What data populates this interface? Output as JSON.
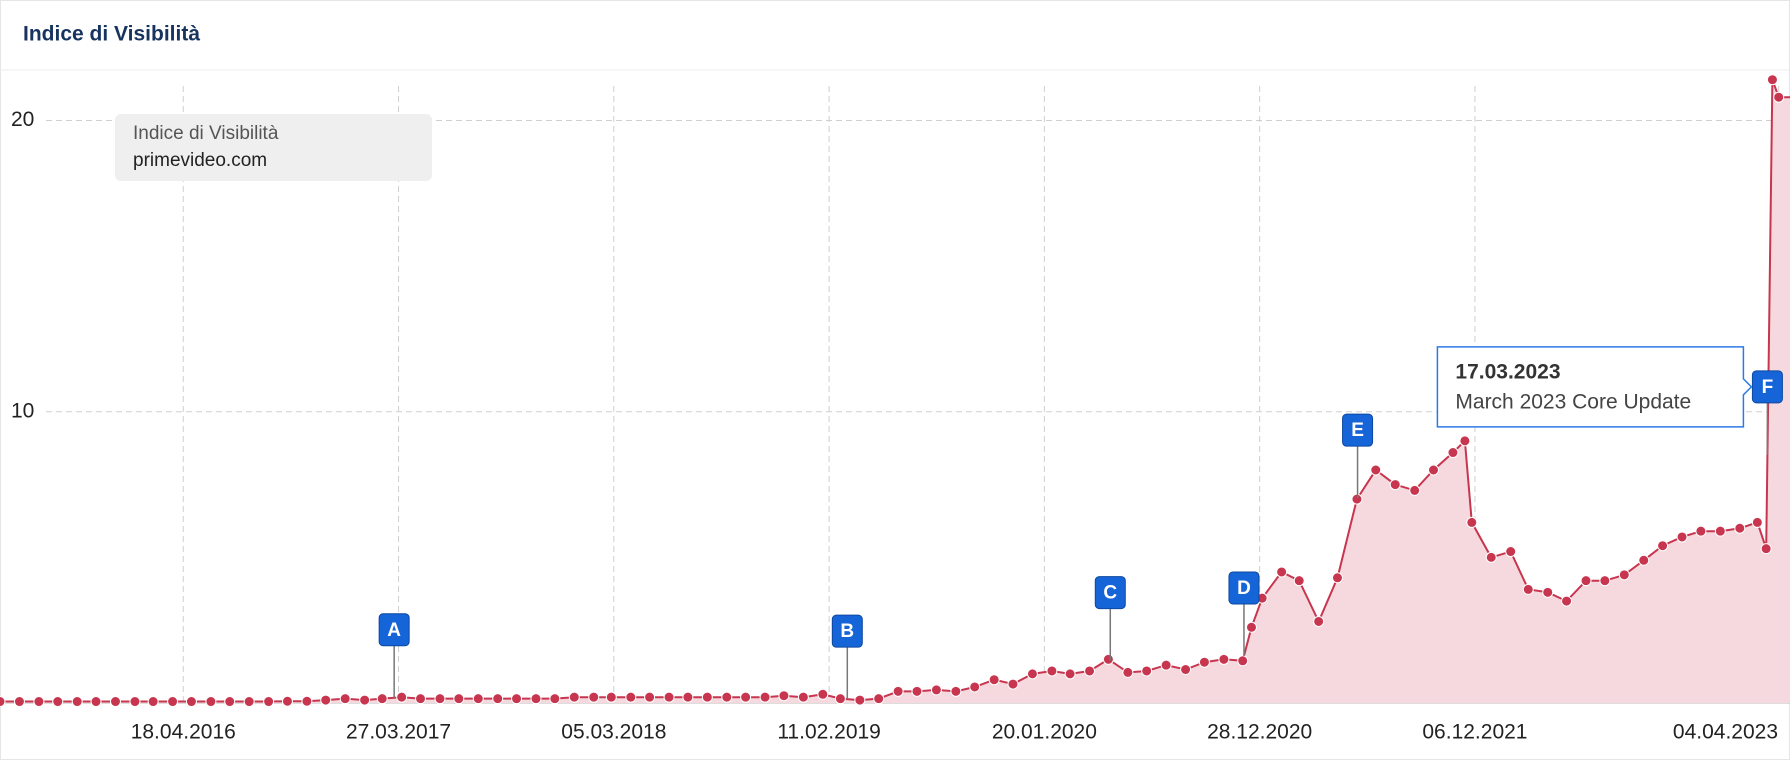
{
  "header": {
    "title": "Indice di Visibilità"
  },
  "chart_data": {
    "type": "area",
    "legend": {
      "title": "Indice di Visibilità",
      "text": "primevideo.com"
    },
    "x": [
      "2015-07-01",
      "2015-08-01",
      "2015-09-01",
      "2015-10-01",
      "2015-11-01",
      "2015-12-01",
      "2016-01-01",
      "2016-02-01",
      "2016-03-01",
      "2016-04-01",
      "2016-05-01",
      "2016-06-01",
      "2016-07-01",
      "2016-08-01",
      "2016-09-01",
      "2016-10-01",
      "2016-11-01",
      "2016-12-01",
      "2017-01-01",
      "2017-02-01",
      "2017-03-01",
      "2017-04-01",
      "2017-05-01",
      "2017-06-01",
      "2017-07-01",
      "2017-08-01",
      "2017-09-01",
      "2017-10-01",
      "2017-11-01",
      "2017-12-01",
      "2018-01-01",
      "2018-02-01",
      "2018-03-01",
      "2018-04-01",
      "2018-05-01",
      "2018-06-01",
      "2018-07-01",
      "2018-08-01",
      "2018-09-01",
      "2018-10-01",
      "2018-11-01",
      "2018-12-01",
      "2019-01-01",
      "2019-02-01",
      "2019-03-01",
      "2019-04-01",
      "2019-05-01",
      "2019-06-01",
      "2019-07-01",
      "2019-08-01",
      "2019-09-01",
      "2019-10-01",
      "2019-11-01",
      "2019-12-01",
      "2020-01-01",
      "2020-02-01",
      "2020-03-01",
      "2020-04-01",
      "2020-05-01",
      "2020-06-01",
      "2020-07-01",
      "2020-08-01",
      "2020-09-01",
      "2020-10-01",
      "2020-11-01",
      "2020-12-01",
      "2020-12-15",
      "2021-01-01",
      "2021-02-01",
      "2021-03-01",
      "2021-04-01",
      "2021-05-01",
      "2021-06-01",
      "2021-07-01",
      "2021-08-01",
      "2021-09-01",
      "2021-10-01",
      "2021-11-01",
      "2021-11-20",
      "2021-12-01",
      "2022-01-01",
      "2022-02-01",
      "2022-03-01",
      "2022-04-01",
      "2022-05-01",
      "2022-06-01",
      "2022-07-01",
      "2022-08-01",
      "2022-09-01",
      "2022-10-01",
      "2022-11-01",
      "2022-12-01",
      "2023-01-01",
      "2023-02-01",
      "2023-03-01",
      "2023-03-15",
      "2023-03-25",
      "2023-04-04"
    ],
    "series": [
      {
        "name": "primevideo.com",
        "color": "#c7354f",
        "fill": "#f6d9de",
        "values": [
          0.05,
          0.05,
          0.05,
          0.05,
          0.05,
          0.05,
          0.05,
          0.05,
          0.05,
          0.05,
          0.05,
          0.05,
          0.05,
          0.05,
          0.05,
          0.06,
          0.06,
          0.1,
          0.15,
          0.1,
          0.15,
          0.2,
          0.15,
          0.15,
          0.15,
          0.15,
          0.15,
          0.15,
          0.15,
          0.15,
          0.2,
          0.2,
          0.2,
          0.2,
          0.2,
          0.2,
          0.2,
          0.2,
          0.2,
          0.2,
          0.2,
          0.25,
          0.2,
          0.3,
          0.15,
          0.1,
          0.15,
          0.4,
          0.4,
          0.45,
          0.4,
          0.55,
          0.8,
          0.65,
          1.0,
          1.1,
          1.0,
          1.1,
          1.5,
          1.05,
          1.1,
          1.3,
          1.15,
          1.4,
          1.5,
          1.45,
          2.6,
          3.6,
          4.5,
          4.2,
          2.8,
          4.3,
          7.0,
          8.0,
          7.5,
          7.3,
          8.0,
          8.6,
          9.0,
          6.2,
          5.0,
          5.2,
          3.9,
          3.8,
          3.5,
          4.2,
          4.2,
          4.4,
          4.9,
          5.4,
          5.7,
          5.9,
          5.9,
          6.0,
          6.2,
          5.3,
          21.4,
          20.8
        ]
      }
    ],
    "xlim": [
      "2015-07-01",
      "2023-04-22"
    ],
    "xticks": [
      {
        "value": "2016-04-18",
        "label": "18.04.2016"
      },
      {
        "value": "2017-03-27",
        "label": "27.03.2017"
      },
      {
        "value": "2018-03-05",
        "label": "05.03.2018"
      },
      {
        "value": "2019-02-11",
        "label": "11.02.2019"
      },
      {
        "value": "2020-01-20",
        "label": "20.01.2020"
      },
      {
        "value": "2020-12-28",
        "label": "28.12.2020"
      },
      {
        "value": "2021-12-06",
        "label": "06.12.2021"
      },
      {
        "value": "2023-04-04",
        "label": "04.04.2023"
      }
    ],
    "ylim": [
      0,
      21.7
    ],
    "yticks": [
      10,
      20
    ],
    "grid": true,
    "events": [
      {
        "label": "A",
        "x": "2017-03-20"
      },
      {
        "label": "B",
        "x": "2019-03-12"
      },
      {
        "label": "C",
        "x": "2020-05-04"
      },
      {
        "label": "D",
        "x": "2020-12-03"
      },
      {
        "label": "E",
        "x": "2021-06-02"
      },
      {
        "label": "F",
        "x": "2023-03-17"
      }
    ],
    "tooltip": {
      "date": "17.03.2023",
      "text": "March 2023 Core Update"
    }
  }
}
